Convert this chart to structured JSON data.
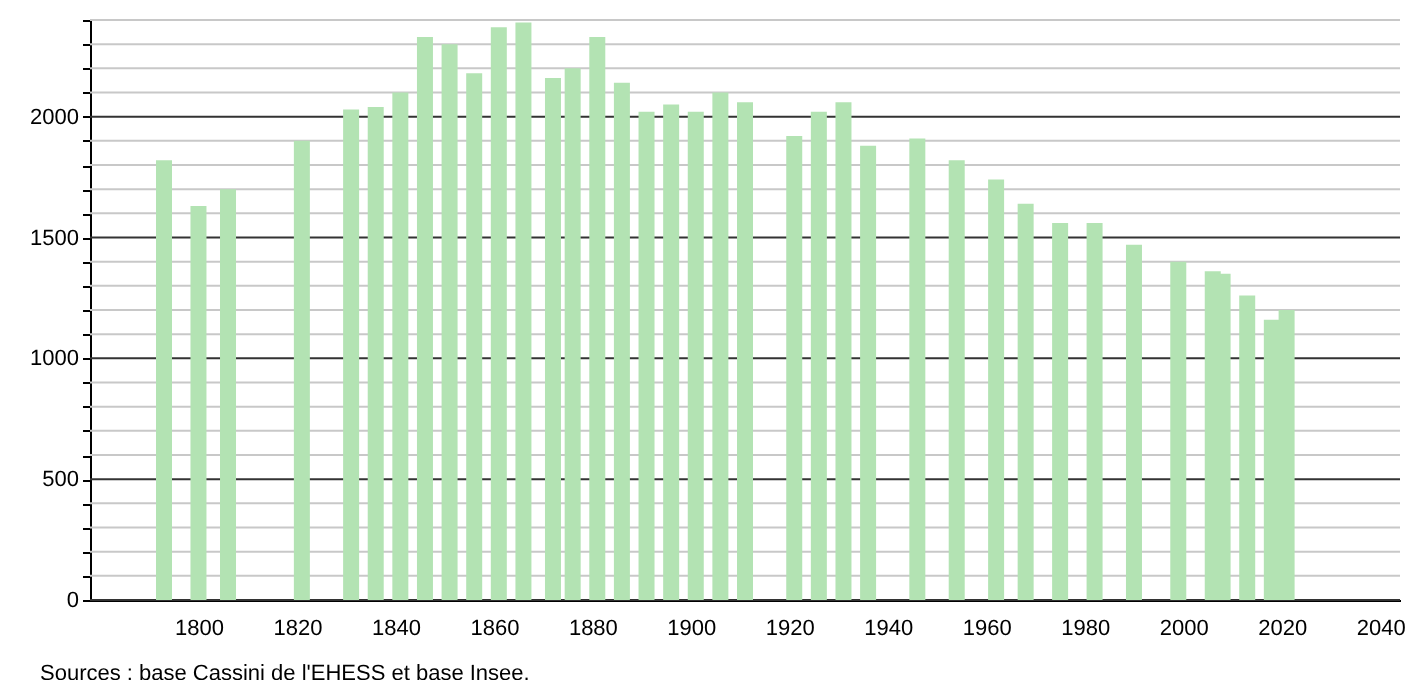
{
  "chart_data": {
    "type": "bar",
    "annotations": [
      "Sources : base Cassini de l'EHESS et base Insee."
    ],
    "x": [
      1793,
      1800,
      1806,
      1821,
      1831,
      1836,
      1841,
      1846,
      1851,
      1856,
      1861,
      1866,
      1872,
      1876,
      1881,
      1886,
      1891,
      1896,
      1901,
      1906,
      1911,
      1921,
      1926,
      1931,
      1936,
      1946,
      1954,
      1962,
      1968,
      1975,
      1982,
      1990,
      1999,
      2006,
      2008,
      2013,
      2018,
      2021
    ],
    "values": [
      1820,
      1630,
      1700,
      1900,
      2030,
      2040,
      2100,
      2330,
      2300,
      2180,
      2370,
      2390,
      2160,
      2200,
      2330,
      2140,
      2020,
      2050,
      2020,
      2100,
      2060,
      1920,
      2020,
      2060,
      1880,
      1910,
      1820,
      1740,
      1640,
      1560,
      1560,
      1470,
      1400,
      1360,
      1350,
      1260,
      1160,
      1200
    ],
    "color": "#b3e3b3",
    "xlim": [
      1780,
      2042
    ],
    "xticks": [
      1800,
      1820,
      1840,
      1860,
      1880,
      1900,
      1920,
      1940,
      1960,
      1980,
      2000,
      2020,
      2040
    ],
    "ylim": [
      0,
      2400
    ],
    "yticks": [
      0,
      {
        "value": 100,
        "label": null
      },
      {
        "value": 200,
        "label": null
      },
      {
        "value": 300,
        "label": null
      },
      {
        "value": 400,
        "label": null
      },
      500,
      {
        "value": 600,
        "label": null
      },
      {
        "value": 700,
        "label": null
      },
      {
        "value": 800,
        "label": null
      },
      {
        "value": 900,
        "label": null
      },
      1000,
      {
        "value": 1100,
        "label": null
      },
      {
        "value": 1200,
        "label": null
      },
      {
        "value": 1300,
        "label": null
      },
      {
        "value": 1400,
        "label": null
      },
      1500,
      {
        "value": 1600,
        "label": null
      },
      {
        "value": 1700,
        "label": null
      },
      {
        "value": 1800,
        "label": null
      },
      {
        "value": 1900,
        "label": null
      },
      2000,
      {
        "value": 2100,
        "label": null
      },
      {
        "value": 2200,
        "label": null
      },
      {
        "value": 2300,
        "label": null
      },
      {
        "value": 2400,
        "label": null
      }
    ],
    "grid": true
  }
}
